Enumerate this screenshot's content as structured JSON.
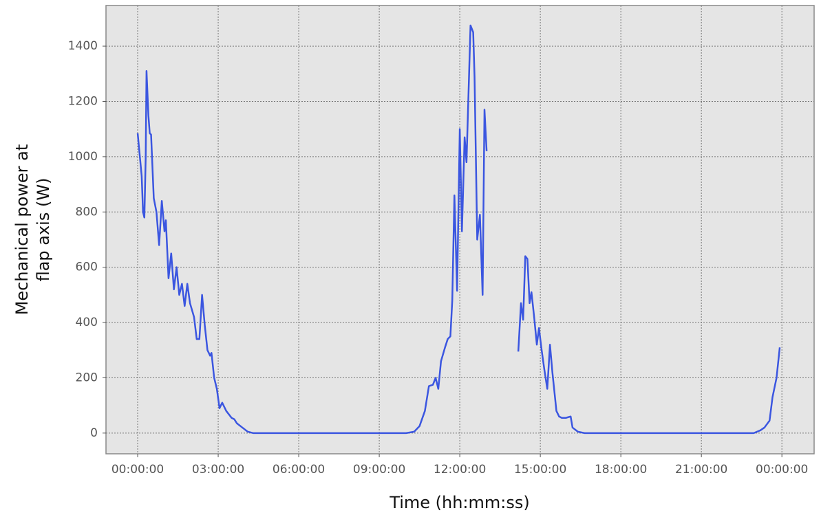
{
  "chart_data": {
    "type": "line",
    "xlabel": "Time (hh:mm:ss)",
    "ylabel": [
      "Mechanical power at",
      "flap axis (W)"
    ],
    "xlim": [
      -1.18,
      25.2
    ],
    "ylim": [
      -75,
      1547
    ],
    "xticks": [
      {
        "value": 0,
        "label": "00:00:00"
      },
      {
        "value": 3,
        "label": "03:00:00"
      },
      {
        "value": 6,
        "label": "06:00:00"
      },
      {
        "value": 9,
        "label": "09:00:00"
      },
      {
        "value": 12,
        "label": "12:00:00"
      },
      {
        "value": 15,
        "label": "15:00:00"
      },
      {
        "value": 18,
        "label": "18:00:00"
      },
      {
        "value": 21,
        "label": "21:00:00"
      },
      {
        "value": 24,
        "label": "00:00:00"
      }
    ],
    "yticks": [
      0,
      200,
      400,
      600,
      800,
      1000,
      1200,
      1400
    ],
    "grid": true,
    "series": [
      {
        "color": "#3b56e0",
        "x": [
          0.0,
          0.15,
          0.2,
          0.25,
          0.3,
          0.33,
          0.4,
          0.45,
          0.5,
          0.6,
          0.7,
          0.8,
          0.9,
          1.0,
          1.05,
          1.15,
          1.25,
          1.35,
          1.45,
          1.55,
          1.65,
          1.75,
          1.85,
          1.95,
          2.1,
          2.2,
          2.3,
          2.4,
          2.5,
          2.6,
          2.7,
          2.75,
          2.85,
          2.95,
          3.05,
          3.15,
          3.3,
          3.5,
          3.6,
          3.7,
          3.9,
          4.1,
          4.3,
          10.0,
          10.3,
          10.5,
          10.7,
          10.85,
          11.0,
          11.1,
          11.2,
          11.3,
          11.45,
          11.55,
          11.65,
          11.72,
          11.8,
          11.9,
          12.0,
          12.08,
          12.18,
          12.25,
          12.4,
          12.5,
          12.55,
          12.65,
          12.75,
          12.85,
          12.92,
          13.0,
          13.5,
          14.18,
          14.28,
          14.36,
          14.44,
          14.52,
          14.6,
          14.67,
          14.77,
          14.87,
          14.95,
          15.05,
          15.15,
          15.26,
          15.36,
          15.45,
          15.6,
          15.7,
          15.8,
          15.95,
          16.13,
          16.2,
          16.4,
          16.65,
          22.95,
          23.2,
          23.35,
          23.54,
          23.65,
          23.8,
          23.92
        ],
        "values": [
          1085,
          930,
          800,
          780,
          1000,
          1310,
          1150,
          1085,
          1080,
          850,
          800,
          680,
          840,
          730,
          770,
          560,
          650,
          520,
          600,
          500,
          540,
          460,
          540,
          470,
          420,
          340,
          340,
          500,
          390,
          300,
          280,
          290,
          200,
          160,
          90,
          110,
          80,
          55,
          50,
          35,
          20,
          5,
          0,
          0,
          5,
          25,
          80,
          170,
          175,
          200,
          160,
          260,
          310,
          340,
          350,
          480,
          860,
          515,
          1100,
          730,
          1070,
          980,
          1475,
          1450,
          1290,
          700,
          790,
          500,
          1170,
          1020,
          null,
          295,
          470,
          410,
          640,
          630,
          470,
          510,
          420,
          320,
          380,
          300,
          230,
          160,
          320,
          220,
          80,
          60,
          55,
          55,
          60,
          20,
          5,
          0,
          0,
          10,
          20,
          45,
          130,
          200,
          310
        ]
      }
    ]
  }
}
